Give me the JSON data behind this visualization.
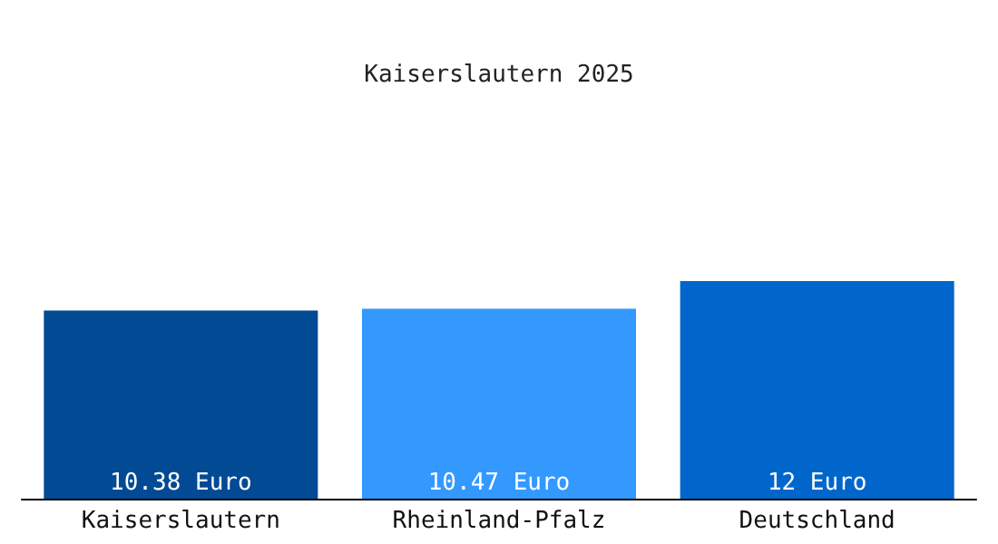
{
  "chart_data": {
    "type": "bar",
    "title": "Kaiserslautern 2025",
    "categories": [
      "Kaiserslautern",
      "Rheinland-Pfalz",
      "Deutschland"
    ],
    "values": [
      10.38,
      10.47,
      12
    ],
    "colors": [
      "#034a94",
      "#3399ff",
      "#0066cc"
    ],
    "value_labels": [
      "10.38 Euro",
      "10.47 Euro",
      "12 Euro"
    ],
    "relative": false
  }
}
